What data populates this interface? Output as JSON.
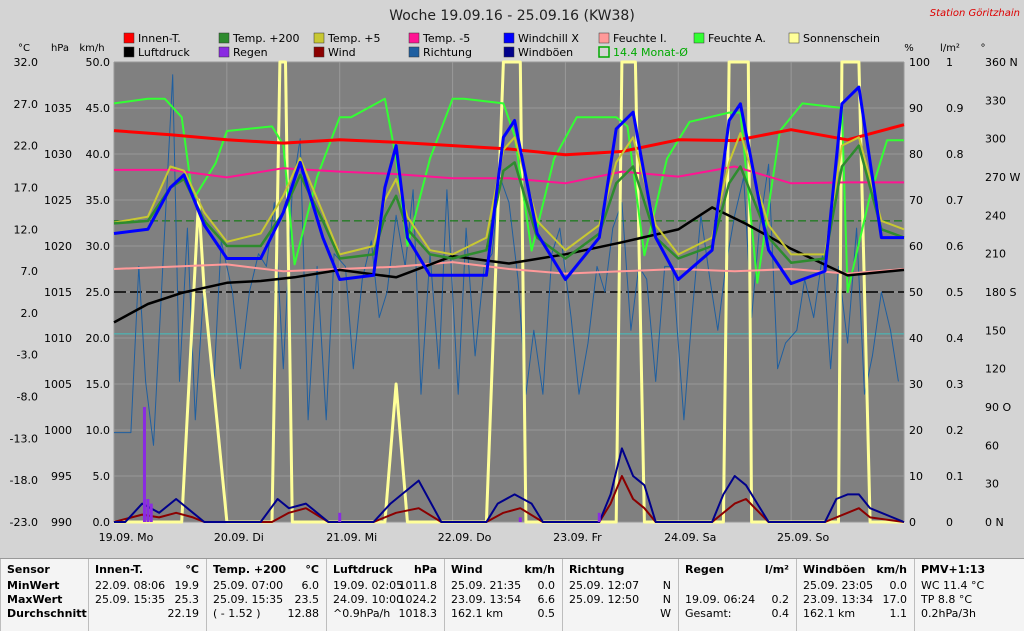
{
  "chart_data": {
    "type": "line",
    "title": "Woche 19.09.16 - 25.09.16 (KW38)",
    "station": "Station Göritzhain",
    "colors": {
      "background": "#808080",
      "grid": "#999999",
      "innen": "#ff0000",
      "temp200": "#2e8b2e",
      "temp5": "#c8c832",
      "tempm5": "#ff1493",
      "windchill": "#0000ff",
      "feuchteI": "#ff9999",
      "feuchteA": "#33ff33",
      "sonne": "#ffff99",
      "luftdruck": "#000000",
      "regen": "#8a2be2",
      "wind": "#8b0000",
      "richtung": "#1f5fa0",
      "windboeen": "#00008b",
      "monat": "#00aa00"
    },
    "axes": {
      "units": {
        "temp": "°C",
        "pressure": "hPa",
        "wind": "km/h",
        "percent": "%",
        "rain": "l/m²",
        "degree": "°"
      },
      "temp_ticks": [
        "32.0",
        "27.0",
        "22.0",
        "17.0",
        "12.0",
        "7.0",
        "2.0",
        "-3.0",
        "-8.0",
        "-13.0",
        "-18.0",
        "-23.0"
      ],
      "pressure_ticks": [
        "1035",
        "1030",
        "1025",
        "1020",
        "1015",
        "1010",
        "1005",
        "1000",
        "995",
        "990"
      ],
      "wind_ticks": [
        "50.0",
        "45.0",
        "40.0",
        "35.0",
        "30.0",
        "25.0",
        "20.0",
        "15.0",
        "10.0",
        "5.0",
        "0.0"
      ],
      "percent_ticks": [
        "100",
        "90",
        "80",
        "70",
        "60",
        "50",
        "40",
        "30",
        "20",
        "10",
        "0"
      ],
      "rain_ticks": [
        "1",
        "0.9",
        "0.8",
        "0.7",
        "0.6",
        "0.5",
        "0.4",
        "0.3",
        "0.2",
        "0.1",
        "0"
      ],
      "dir_ticks": [
        "360 N",
        "330",
        "300",
        "270 W",
        "240",
        "210",
        "180 S",
        "150",
        "120",
        "90 O",
        "60",
        "30",
        "0 N"
      ],
      "x_labels": [
        "19.09. Mo",
        "20.09. Di",
        "21.09. Mi",
        "22.09. Do",
        "23.09. Fr",
        "24.09. Sa",
        "25.09. So"
      ],
      "days": 7
    },
    "legend": [
      {
        "label": "Innen-T.",
        "key": "innen"
      },
      {
        "label": "Temp. +200",
        "key": "temp200"
      },
      {
        "label": "Temp. +5",
        "key": "temp5"
      },
      {
        "label": "Temp. -5",
        "key": "tempm5"
      },
      {
        "label": "Windchill X",
        "key": "windchill"
      },
      {
        "label": "Feuchte I.",
        "key": "feuchteI"
      },
      {
        "label": "Feuchte A.",
        "key": "feuchteA"
      },
      {
        "label": "Sonnenschein",
        "key": "sonne"
      },
      {
        "label": "Luftdruck",
        "key": "luftdruck"
      },
      {
        "label": "Regen",
        "key": "regen"
      },
      {
        "label": "Wind",
        "key": "wind"
      },
      {
        "label": "Richtung",
        "key": "richtung"
      },
      {
        "label": "Windböen",
        "key": "windboeen"
      },
      {
        "label": "14.4 Monat-Ø",
        "key": "monat",
        "outline": true
      }
    ],
    "series": {
      "innen": {
        "x": [
          0,
          0.5,
          1,
          1.5,
          2,
          2.5,
          3,
          3.5,
          4,
          4.5,
          5,
          5.5,
          6,
          6.5,
          7
        ],
        "y": [
          23.8,
          23.3,
          22.7,
          22.3,
          22.7,
          22.4,
          22.0,
          21.6,
          20.9,
          21.3,
          22.7,
          22.6,
          23.9,
          22.7,
          24.5
        ]
      },
      "tempm5": {
        "x": [
          0,
          0.5,
          1,
          1.5,
          2,
          2.5,
          3,
          3.5,
          4,
          4.5,
          5,
          5.5,
          6,
          6.5,
          7
        ],
        "y": [
          19.1,
          19.1,
          18.2,
          19.3,
          18.9,
          18.6,
          18.1,
          18.1,
          17.5,
          18.9,
          18.3,
          19.5,
          17.5,
          17.6,
          17.6
        ]
      },
      "feuchteI": {
        "x": [
          0,
          0.5,
          1,
          1.5,
          2,
          2.5,
          3,
          3.5,
          4,
          4.5,
          5,
          5.5,
          6,
          6.5,
          7
        ],
        "y": [
          55,
          55.5,
          56,
          54.5,
          55,
          55.5,
          56.5,
          55,
          54,
          54.5,
          55,
          54.5,
          55,
          54,
          55
        ]
      },
      "luftdruck": {
        "x": [
          0,
          0.3,
          0.6,
          1,
          1.3,
          1.6,
          2,
          2.5,
          3,
          3.5,
          4,
          4.5,
          5,
          5.3,
          5.6,
          6,
          6.5,
          7
        ],
        "y": [
          1011.7,
          1013.7,
          1014.9,
          1016.0,
          1016.2,
          1016.6,
          1017.4,
          1016.6,
          1018.9,
          1018.1,
          1019.1,
          1020.4,
          1021.8,
          1024.2,
          1022.4,
          1019.7,
          1016.8,
          1017.4
        ]
      },
      "sonne": {
        "x": [
          0,
          0.6,
          0.75,
          0.8,
          1.0,
          1.4,
          1.47,
          1.52,
          1.58,
          1.8,
          2.4,
          2.5,
          2.6,
          2.65,
          3.3,
          3.45,
          3.5,
          3.6,
          3.65,
          4.3,
          4.45,
          4.5,
          4.62,
          4.7,
          5.3,
          5.4,
          5.45,
          5.62,
          5.65,
          6.3,
          6.42,
          6.45,
          6.6,
          6.7,
          7
        ],
        "y": [
          0,
          0,
          70,
          50,
          0,
          0,
          100,
          100,
          0,
          0,
          0,
          30,
          0,
          0,
          0,
          100,
          100,
          100,
          0,
          0,
          0,
          100,
          100,
          0,
          0,
          0,
          100,
          100,
          0,
          0,
          0,
          100,
          100,
          0,
          0
        ]
      },
      "temp200": {
        "x": [
          0,
          0.3,
          0.5,
          0.62,
          0.8,
          1.0,
          1.3,
          1.5,
          1.65,
          1.85,
          2.0,
          2.3,
          2.4,
          2.5,
          2.6,
          2.8,
          3.0,
          3.3,
          3.45,
          3.55,
          3.75,
          4.0,
          4.3,
          4.45,
          4.6,
          4.8,
          5.0,
          5.3,
          5.45,
          5.55,
          5.8,
          6.0,
          6.3,
          6.45,
          6.6,
          6.8,
          7
        ],
        "y": [
          12.7,
          13.0,
          17.0,
          18.0,
          13.0,
          10.0,
          10.0,
          14.0,
          18.5,
          13.0,
          8.5,
          9.0,
          13.5,
          16.0,
          12.0,
          9.0,
          8.5,
          9.5,
          19.0,
          20.0,
          11.0,
          8.5,
          11.5,
          17.5,
          19.5,
          11.0,
          8.5,
          10.0,
          17.5,
          19.5,
          11.0,
          8.0,
          8.5,
          19.5,
          22.0,
          12.0,
          11.0
        ]
      },
      "temp5": {
        "x": [
          0,
          0.3,
          0.5,
          0.62,
          0.8,
          1.0,
          1.3,
          1.5,
          1.65,
          1.85,
          2.0,
          2.3,
          2.4,
          2.5,
          2.6,
          2.8,
          3.0,
          3.3,
          3.45,
          3.55,
          3.75,
          4.0,
          4.3,
          4.45,
          4.6,
          4.8,
          5.0,
          5.3,
          5.45,
          5.55,
          5.8,
          6.0,
          6.3,
          6.45,
          6.6,
          6.8,
          7
        ],
        "y": [
          12.8,
          13.5,
          19.5,
          19.0,
          14.0,
          10.5,
          11.5,
          16.0,
          20.5,
          14.0,
          9.0,
          10.0,
          15.5,
          18.0,
          13.5,
          9.5,
          9.0,
          11.0,
          21.5,
          23.0,
          13.0,
          9.5,
          12.5,
          20.0,
          23.0,
          12.5,
          9.0,
          11.0,
          20.0,
          23.5,
          12.5,
          9.0,
          9.0,
          22.0,
          23.0,
          13.0,
          12.0
        ]
      },
      "windchill": {
        "x": [
          0,
          0.3,
          0.5,
          0.62,
          0.8,
          1.0,
          1.3,
          1.5,
          1.65,
          1.85,
          2.0,
          2.3,
          2.4,
          2.5,
          2.6,
          2.8,
          3.0,
          3.3,
          3.45,
          3.55,
          3.75,
          4.0,
          4.3,
          4.45,
          4.6,
          4.8,
          5.0,
          5.3,
          5.45,
          5.55,
          5.8,
          6.0,
          6.3,
          6.45,
          6.6,
          6.8,
          7
        ],
        "y": [
          11.5,
          12.0,
          17.0,
          18.5,
          12.5,
          8.5,
          8.5,
          14.0,
          20.0,
          11.0,
          6.0,
          6.5,
          17.0,
          22.0,
          11.0,
          6.5,
          6.5,
          6.5,
          23.0,
          25.0,
          11.5,
          6.0,
          11.0,
          24.0,
          26.0,
          11.0,
          6.0,
          9.5,
          25.0,
          27.0,
          9.5,
          5.5,
          7.0,
          27.0,
          29.0,
          11.0,
          11.0
        ]
      },
      "feuchteA": {
        "x": [
          0,
          0.3,
          0.45,
          0.6,
          0.7,
          0.9,
          1.0,
          1.4,
          1.5,
          1.6,
          1.8,
          2.0,
          2.1,
          2.4,
          2.5,
          2.6,
          2.8,
          3.0,
          3.1,
          3.45,
          3.55,
          3.7,
          3.9,
          4.1,
          4.45,
          4.55,
          4.7,
          4.9,
          5.1,
          5.45,
          5.55,
          5.7,
          5.9,
          6.1,
          6.45,
          6.5,
          6.7,
          6.85,
          7
        ],
        "y": [
          91,
          92,
          92,
          88,
          70,
          78,
          85,
          86,
          82,
          56,
          75,
          88,
          88,
          92,
          79,
          60,
          79,
          92,
          92,
          91,
          84,
          59,
          79,
          88,
          88,
          86,
          58,
          79,
          87,
          89,
          89,
          52,
          85,
          91,
          90,
          50,
          71,
          83,
          83
        ]
      },
      "windboeen": {
        "x": [
          0,
          0.1,
          0.25,
          0.4,
          0.55,
          0.7,
          0.8,
          1.0,
          1.3,
          1.45,
          1.55,
          1.7,
          1.9,
          2.3,
          2.45,
          2.55,
          2.7,
          2.9,
          3.3,
          3.4,
          3.55,
          3.7,
          3.8,
          4.3,
          4.4,
          4.5,
          4.6,
          4.7,
          4.8,
          5.3,
          5.4,
          5.5,
          5.6,
          5.7,
          5.8,
          6.3,
          6.4,
          6.5,
          6.6,
          6.7,
          7
        ],
        "y": [
          0,
          0,
          2,
          1,
          2.5,
          1,
          0,
          0,
          0,
          2.5,
          1.5,
          2,
          0,
          0,
          2,
          3,
          4.5,
          0,
          0,
          2,
          3,
          2,
          0,
          0,
          3,
          8,
          5,
          4,
          0,
          0,
          3,
          5,
          4,
          2,
          0,
          0,
          2.5,
          3,
          3,
          1.5,
          0
        ]
      },
      "wind": {
        "x": [
          0,
          0.25,
          0.4,
          0.55,
          0.7,
          0.8,
          1.0,
          1.4,
          1.55,
          1.7,
          1.9,
          2.3,
          2.5,
          2.7,
          2.9,
          3.3,
          3.45,
          3.6,
          3.8,
          4.3,
          4.4,
          4.5,
          4.6,
          4.7,
          4.8,
          5.3,
          5.5,
          5.6,
          5.8,
          6.3,
          6.5,
          6.6,
          6.7,
          7
        ],
        "y": [
          0,
          0.8,
          0.5,
          1,
          0.5,
          0,
          0,
          0,
          1,
          1.5,
          0,
          0,
          1,
          1.5,
          0,
          0,
          1,
          1.5,
          0,
          0,
          2,
          5,
          2.5,
          1.5,
          0,
          0,
          2,
          2.5,
          0,
          0,
          1,
          1.5,
          0.5,
          0
        ]
      },
      "richtung": {
        "x": [
          0,
          0.08,
          0.15,
          0.22,
          0.28,
          0.35,
          0.45,
          0.52,
          0.58,
          0.65,
          0.72,
          0.8,
          0.88,
          0.95,
          1.05,
          1.12,
          1.2,
          1.28,
          1.35,
          1.42,
          1.5,
          1.58,
          1.65,
          1.72,
          1.8,
          1.88,
          1.95,
          2.05,
          2.12,
          2.2,
          2.28,
          2.35,
          2.42,
          2.5,
          2.58,
          2.65,
          2.72,
          2.8,
          2.88,
          2.95,
          3.05,
          3.12,
          3.2,
          3.28,
          3.35,
          3.42,
          3.5,
          3.58,
          3.65,
          3.72,
          3.8,
          3.88,
          3.95,
          4.05,
          4.12,
          4.2,
          4.28,
          4.35,
          4.42,
          4.5,
          4.58,
          4.65,
          4.72,
          4.8,
          4.88,
          4.95,
          5.05,
          5.12,
          5.2,
          5.28,
          5.35,
          5.42,
          5.5,
          5.58,
          5.65,
          5.72,
          5.8,
          5.88,
          5.95,
          6.05,
          6.12,
          6.2,
          6.28,
          6.35,
          6.42,
          6.5,
          6.58,
          6.65,
          6.72,
          6.8,
          6.88,
          6.95
        ],
        "y": [
          70,
          70,
          70,
          200,
          110,
          60,
          230,
          350,
          110,
          230,
          80,
          190,
          100,
          220,
          180,
          120,
          180,
          210,
          200,
          250,
          120,
          260,
          300,
          80,
          200,
          80,
          210,
          200,
          120,
          190,
          220,
          160,
          180,
          240,
          200,
          260,
          100,
          210,
          120,
          260,
          100,
          230,
          130,
          200,
          210,
          270,
          250,
          190,
          100,
          150,
          100,
          210,
          230,
          160,
          100,
          140,
          200,
          180,
          230,
          250,
          150,
          200,
          190,
          110,
          200,
          200,
          80,
          160,
          240,
          190,
          150,
          200,
          240,
          270,
          160,
          230,
          280,
          120,
          140,
          150,
          190,
          160,
          210,
          120,
          200,
          140,
          230,
          100,
          130,
          180,
          150,
          110
        ]
      },
      "regen": {
        "x": [
          0.27,
          0.3,
          0.33,
          2.0,
          3.6,
          4.3
        ],
        "y": [
          0.25,
          0.05,
          0.04,
          0.02,
          0.01,
          0.02
        ]
      },
      "hline_black": 4.5,
      "hline_darkgreen": 13.0,
      "hline_cyan": -0.5
    }
  },
  "stats": {
    "columns": [
      {
        "title": "Sensor",
        "unit": "",
        "rows": [
          "MinWert",
          "MaxWert",
          "Durchschnitt"
        ],
        "rowvals": [
          "",
          "",
          ""
        ]
      },
      {
        "title": "Innen-T.",
        "unit": "°C",
        "rows": [
          "22.09.  08:06",
          "25.09.  15:35",
          ""
        ],
        "rowvals": [
          "19.9",
          "25.3",
          "22.19"
        ]
      },
      {
        "title": "Temp. +200",
        "unit": "°C",
        "rows": [
          "25.09.  07:00",
          "25.09.  15:35",
          "( - 1.52 )"
        ],
        "rowvals": [
          "6.0",
          "23.5",
          "12.88"
        ]
      },
      {
        "title": "Luftdruck",
        "unit": "hPa",
        "rows": [
          "19.09.  02:05",
          "24.09.  10:00",
          "^0.9hPa/h"
        ],
        "rowvals": [
          "1011.8",
          "1024.2",
          "1018.3"
        ]
      },
      {
        "title": "Wind",
        "unit": "km/h",
        "rows": [
          "25.09.  21:35",
          "23.09.  13:54",
          "162.1 km"
        ],
        "rowvals": [
          "0.0",
          "6.6",
          "0.5"
        ]
      },
      {
        "title": "Richtung",
        "unit": "",
        "rows": [
          "25.09.  12:07",
          "25.09.  12:50",
          ""
        ],
        "rowvals": [
          "N",
          "N",
          "W"
        ]
      },
      {
        "title": "Regen",
        "unit": "l/m²",
        "rows": [
          "",
          "19.09.  06:24",
          "Gesamt:"
        ],
        "rowvals": [
          "",
          "0.2",
          "0.4"
        ]
      },
      {
        "title": "Windböen",
        "unit": "km/h",
        "rows": [
          "25.09.  23:05",
          "23.09.  13:34",
          "162.1 km"
        ],
        "rowvals": [
          "0.0",
          "17.0",
          "1.1"
        ]
      },
      {
        "title": "PMV+1:13",
        "unit": "",
        "rows": [
          "WC 11.4 °C",
          "TP 8.8 °C",
          "0.2hPa/3h"
        ],
        "rowvals": [
          "",
          "",
          ""
        ]
      }
    ]
  }
}
